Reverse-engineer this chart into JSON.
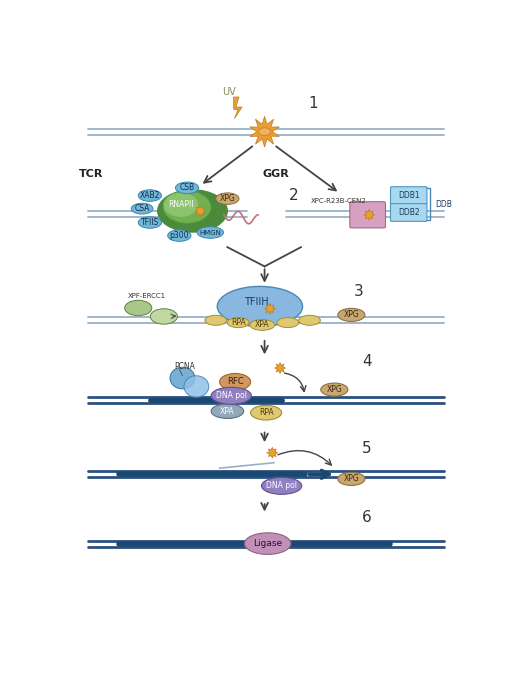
{
  "bg_color": "#ffffff",
  "dna_color": "#9ab0c8",
  "dna_dark": "#2a5080",
  "uv_color": "#e8a030",
  "uv_edge": "#c07820",
  "arrow_color": "#444444",
  "tcr_label": "TCR",
  "ggr_label": "GGR",
  "steps": [
    "1",
    "2",
    "3",
    "4",
    "5",
    "6"
  ],
  "green_dark": "#4a8a3a",
  "green_mid": "#70b050",
  "green_light": "#a0d080",
  "blue_prot": "#70b8d8",
  "blue_prot_edge": "#3a88b0",
  "blue_light": "#a8d8f0",
  "blue_light_edge": "#5098c0",
  "tfiih_color": "#88b8e0",
  "tfiih_edge": "#4888b8",
  "orange_prot": "#d09860",
  "orange_edge": "#a06830",
  "xpg_color": "#c8a870",
  "xpg_edge": "#907040",
  "yellow_prot": "#e0c870",
  "yellow_edge": "#a09030",
  "purple_prot": "#9080c0",
  "purple_edge": "#605090",
  "grey_prot": "#90a8b8",
  "grey_edge": "#607080",
  "pink_rect": "#d8a0c0",
  "pink_edge": "#a06890",
  "mauve": "#c090b8",
  "mauve_edge": "#906080",
  "xpf_green1": "#a8c888",
  "xpf_green2": "#c0d8a0",
  "xpf_edge": "#608040"
}
